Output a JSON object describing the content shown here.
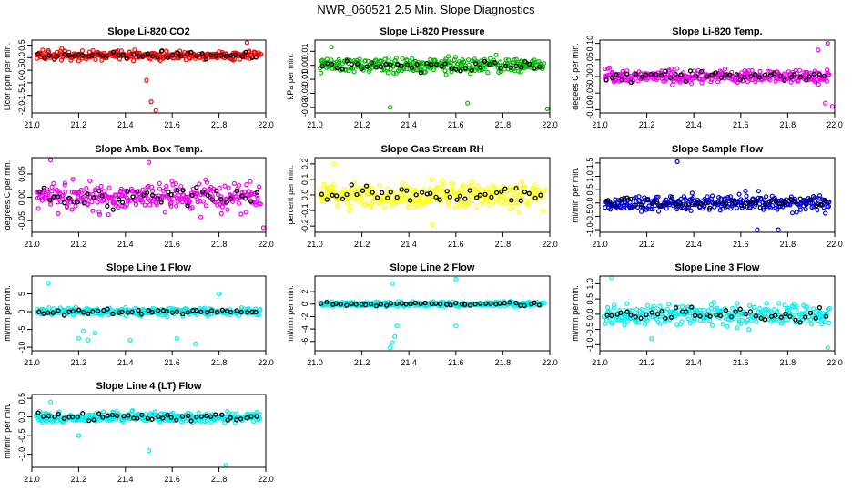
{
  "page_title": "NWR_060521  2.5 Min. Slope Diagnostics",
  "chart_data": [
    {
      "type": "scatter",
      "title": "Slope Li-820 CO2",
      "xlabel": "",
      "ylabel": "Licor ppm per min.",
      "xlim": [
        21.0,
        22.0
      ],
      "ylim": [
        -2.2,
        0.7
      ],
      "xticks": [
        21.0,
        21.2,
        21.4,
        21.6,
        21.8,
        22.0
      ],
      "xtick_labels": [
        "21.0",
        "21.2",
        "21.4",
        "21.6",
        "21.8",
        "22.0"
      ],
      "yticks": [
        -2.0,
        -1.5,
        -1.0,
        -0.5,
        0.0,
        0.5
      ],
      "ytick_labels": [
        "-2.0",
        "-1.5",
        "-1.0",
        "-0.5",
        "0.0",
        "0.5"
      ],
      "color": "#ff0000",
      "center": 0.1,
      "spread": 0.18,
      "n_points": 300,
      "black_points": 45,
      "outliers": [
        [
          21.51,
          -1.75
        ],
        [
          21.53,
          -2.1
        ],
        [
          21.49,
          -0.9
        ],
        [
          21.92,
          0.6
        ]
      ]
    },
    {
      "type": "scatter",
      "title": "Slope Li-820 Pressure",
      "xlabel": "",
      "ylabel": "kPa per min.",
      "xlim": [
        21.0,
        22.0
      ],
      "ylim": [
        -0.034,
        0.018
      ],
      "xticks": [
        21.0,
        21.2,
        21.4,
        21.6,
        21.8,
        22.0
      ],
      "xtick_labels": [
        "21.0",
        "21.2",
        "21.4",
        "21.6",
        "21.8",
        "22.0"
      ],
      "yticks": [
        -0.03,
        -0.02,
        -0.01,
        0.0,
        0.01
      ],
      "ytick_labels": [
        "-0.03",
        "-0.02",
        "-0.01",
        "0.00",
        "0.01"
      ],
      "color": "#00bb00",
      "center": 0.0,
      "spread": 0.005,
      "n_points": 300,
      "black_points": 45,
      "outliers": [
        [
          21.32,
          -0.03
        ],
        [
          21.65,
          -0.027
        ],
        [
          21.99,
          -0.031
        ],
        [
          21.07,
          0.013
        ]
      ]
    },
    {
      "type": "scatter",
      "title": "Slope Li-820 Temp.",
      "xlabel": "",
      "ylabel": "degees C per min.",
      "xlim": [
        21.0,
        22.0
      ],
      "ylim": [
        -0.11,
        0.11
      ],
      "xticks": [
        21.0,
        21.2,
        21.4,
        21.6,
        21.8,
        22.0
      ],
      "xtick_labels": [
        "21.0",
        "21.2",
        "21.4",
        "21.6",
        "21.8",
        "22.0"
      ],
      "yticks": [
        -0.1,
        -0.05,
        0.0,
        0.05,
        0.1
      ],
      "ytick_labels": [
        "-0.10",
        "-0.05",
        "0.00",
        "0.05",
        "0.10"
      ],
      "color": "#ee00ee",
      "center": 0.0,
      "spread": 0.02,
      "n_points": 300,
      "black_points": 45,
      "outliers": [
        [
          21.97,
          0.1
        ],
        [
          21.93,
          0.08
        ],
        [
          21.99,
          -0.09
        ],
        [
          21.96,
          -0.08
        ]
      ]
    },
    {
      "type": "scatter",
      "title": "Slope Amb. Box Temp.",
      "xlabel": "",
      "ylabel": "degrees C per min.",
      "xlim": [
        21.0,
        22.0
      ],
      "ylim": [
        -0.075,
        0.085
      ],
      "xticks": [
        21.0,
        21.2,
        21.4,
        21.6,
        21.8,
        22.0
      ],
      "xtick_labels": [
        "21.0",
        "21.2",
        "21.4",
        "21.6",
        "21.8",
        "22.0"
      ],
      "yticks": [
        -0.05,
        0.0,
        0.05
      ],
      "ytick_labels": [
        "-0.05",
        "0.00",
        "0.05"
      ],
      "color": "#ee00ee",
      "center": 0.0,
      "spread": 0.028,
      "n_points": 300,
      "black_points": 45,
      "outliers": [
        [
          21.08,
          0.08
        ],
        [
          21.5,
          0.075
        ],
        [
          21.99,
          -0.065
        ]
      ]
    },
    {
      "type": "scatter",
      "title": "Slope Gas Stream RH",
      "xlabel": "",
      "ylabel": "percent per min.",
      "xlim": [
        21.0,
        22.0
      ],
      "ylim": [
        -0.24,
        0.24
      ],
      "xticks": [
        21.0,
        21.2,
        21.4,
        21.6,
        21.8,
        22.0
      ],
      "xtick_labels": [
        "21.0",
        "21.2",
        "21.4",
        "21.6",
        "21.8",
        "22.0"
      ],
      "yticks": [
        -0.2,
        -0.1,
        0.0,
        0.1,
        0.2
      ],
      "ytick_labels": [
        "-0.2",
        "-0.1",
        "0.0",
        "0.1",
        "0.2"
      ],
      "color": "#ffff00",
      "center": 0.0,
      "spread": 0.08,
      "n_points": 300,
      "black_points": 45,
      "outliers": [
        [
          21.08,
          0.2
        ],
        [
          21.5,
          -0.19
        ]
      ]
    },
    {
      "type": "scatter",
      "title": "Slope Sample Flow",
      "xlabel": "",
      "ylabel": "ml/min per min.",
      "xlim": [
        21.0,
        22.0
      ],
      "ylim": [
        -1.1,
        1.7
      ],
      "xticks": [
        21.0,
        21.2,
        21.4,
        21.6,
        21.8,
        22.0
      ],
      "xtick_labels": [
        "21.0",
        "21.2",
        "21.4",
        "21.6",
        "21.8",
        "22.0"
      ],
      "yticks": [
        -1.0,
        -0.5,
        0.0,
        0.5,
        1.0,
        1.5
      ],
      "ytick_labels": [
        "-1.0",
        "-0.5",
        "0.0",
        "0.5",
        "1.0",
        "1.5"
      ],
      "color": "#0000dd",
      "center": 0.0,
      "spread": 0.3,
      "n_points": 300,
      "black_points": 45,
      "outliers": [
        [
          21.33,
          1.55
        ],
        [
          21.67,
          -1.0
        ],
        [
          21.76,
          -1.0
        ]
      ]
    },
    {
      "type": "scatter",
      "title": "Slope Line 1 Flow",
      "xlabel": "",
      "ylabel": "ml/min per min.",
      "xlim": [
        21.0,
        22.0
      ],
      "ylim": [
        -11,
        10
      ],
      "xticks": [
        21.0,
        21.2,
        21.4,
        21.6,
        21.8,
        22.0
      ],
      "xtick_labels": [
        "21.0",
        "21.2",
        "21.4",
        "21.6",
        "21.8",
        "22.0"
      ],
      "yticks": [
        -10,
        -5,
        0,
        5
      ],
      "ytick_labels": [
        "-10",
        "-5",
        "0",
        "5"
      ],
      "color": "#00eeee",
      "center": 0.0,
      "spread": 1.0,
      "n_points": 300,
      "black_points": 45,
      "outliers": [
        [
          21.07,
          8.0
        ],
        [
          21.2,
          -7.5
        ],
        [
          21.22,
          -5.5
        ],
        [
          21.24,
          -8.0
        ],
        [
          21.27,
          -6.0
        ],
        [
          21.42,
          -8.0
        ],
        [
          21.62,
          -7.5
        ],
        [
          21.7,
          -9.0
        ],
        [
          21.8,
          5.0
        ]
      ]
    },
    {
      "type": "scatter",
      "title": "Slope Line 2 Flow",
      "xlabel": "",
      "ylabel": "ml/min per min.",
      "xlim": [
        21.0,
        22.0
      ],
      "ylim": [
        -7.5,
        4.5
      ],
      "xticks": [
        21.0,
        21.2,
        21.4,
        21.6,
        21.8,
        22.0
      ],
      "xtick_labels": [
        "21.0",
        "21.2",
        "21.4",
        "21.6",
        "21.8",
        "22.0"
      ],
      "yticks": [
        -6,
        -4,
        -2,
        0,
        2
      ],
      "ytick_labels": [
        "-6",
        "-4",
        "-2",
        "0",
        "2"
      ],
      "color": "#00eeee",
      "center": 0.0,
      "spread": 0.35,
      "n_points": 300,
      "black_points": 45,
      "outliers": [
        [
          21.32,
          -7.0
        ],
        [
          21.33,
          -6.2
        ],
        [
          21.34,
          -5.2
        ],
        [
          21.35,
          -3.5
        ],
        [
          21.33,
          3.3
        ],
        [
          21.6,
          4.0
        ],
        [
          21.6,
          -3.5
        ]
      ]
    },
    {
      "type": "scatter",
      "title": "Slope Line 3 Flow",
      "xlabel": "",
      "ylabel": "ml/min per min.",
      "xlim": [
        21.0,
        22.0
      ],
      "ylim": [
        -1.2,
        1.25
      ],
      "xticks": [
        21.0,
        21.2,
        21.4,
        21.6,
        21.8,
        22.0
      ],
      "xtick_labels": [
        "21.0",
        "21.2",
        "21.4",
        "21.6",
        "21.8",
        "22.0"
      ],
      "yticks": [
        -1.0,
        -0.5,
        0.0,
        0.5,
        1.0
      ],
      "ytick_labels": [
        "-1.0",
        "-0.5",
        "0.0",
        "0.5",
        "1.0"
      ],
      "color": "#00eeee",
      "center": 0.0,
      "spread": 0.33,
      "n_points": 300,
      "black_points": 45,
      "outliers": [
        [
          21.05,
          1.2
        ],
        [
          21.97,
          -1.1
        ],
        [
          21.22,
          -0.8
        ]
      ]
    },
    {
      "type": "scatter",
      "title": "Slope Line 4 (LT) Flow",
      "xlabel": "",
      "ylabel": "ml/min per min.",
      "xlim": [
        21.0,
        22.0
      ],
      "ylim": [
        -1.35,
        0.6
      ],
      "xticks": [
        21.0,
        21.2,
        21.4,
        21.6,
        21.8,
        22.0
      ],
      "xtick_labels": [
        "21.0",
        "21.2",
        "21.4",
        "21.6",
        "21.8",
        "22.0"
      ],
      "yticks": [
        -1.0,
        -0.5,
        0.0,
        0.5
      ],
      "ytick_labels": [
        "-1.0",
        "-0.5",
        "0.0",
        "0.5"
      ],
      "color": "#00eeee",
      "center": 0.0,
      "spread": 0.14,
      "n_points": 300,
      "black_points": 45,
      "outliers": [
        [
          21.5,
          -0.9
        ],
        [
          21.83,
          -1.3
        ],
        [
          21.2,
          -0.5
        ],
        [
          21.08,
          0.4
        ]
      ]
    }
  ]
}
